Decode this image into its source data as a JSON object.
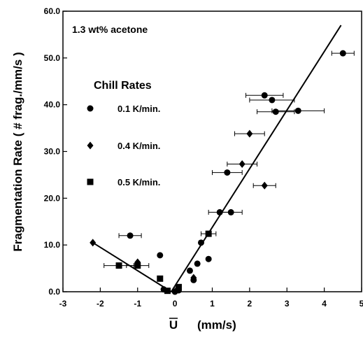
{
  "chart_data": {
    "type": "scatter",
    "annotation": "1.3 wt% acetone",
    "xlabel": "U",
    "xunit": "(mm/s)",
    "ylabel": "Fragmentation Rate ( # frag./mm/s )",
    "xlim": [
      -3,
      5
    ],
    "ylim": [
      0,
      60
    ],
    "x_ticks": [
      -3,
      -2,
      -1,
      0,
      1,
      2,
      3,
      4,
      5
    ],
    "x_tick_labels": [
      "-3",
      "-2",
      "-1",
      "0",
      "1",
      "2",
      "3",
      "4",
      "5"
    ],
    "y_ticks": [
      0,
      10,
      20,
      30,
      40,
      50,
      60
    ],
    "y_tick_labels": [
      "0.0",
      "10.0",
      "20.0",
      "30.0",
      "40.0",
      "50.0",
      "60.0"
    ],
    "grid": false,
    "legend": {
      "title": "Chill Rates",
      "placement": "upper-left",
      "entries": [
        {
          "label": "0.1 K/min.",
          "marker": "circle"
        },
        {
          "label": "0.4 K/min.",
          "marker": "diamond"
        },
        {
          "label": "0.5 K/min.",
          "marker": "square"
        }
      ]
    },
    "series": [
      {
        "name": "0.1 K/min.",
        "marker": "circle",
        "points": [
          {
            "x": -1.2,
            "y": 12.0,
            "xerr": 0.3
          },
          {
            "x": -0.4,
            "y": 7.8
          },
          {
            "x": -0.3,
            "y": 0.5
          },
          {
            "x": 0.0,
            "y": 0.0
          },
          {
            "x": 0.1,
            "y": 0.3
          },
          {
            "x": 0.4,
            "y": 4.5
          },
          {
            "x": 0.5,
            "y": 2.5
          },
          {
            "x": 0.6,
            "y": 6.0
          },
          {
            "x": 0.7,
            "y": 10.5
          },
          {
            "x": 0.9,
            "y": 7.0
          },
          {
            "x": 1.2,
            "y": 17.0,
            "xerr": 0.3
          },
          {
            "x": 1.5,
            "y": 17.0,
            "xerr": 0.3
          },
          {
            "x": 1.4,
            "y": 25.5,
            "xerr": 0.4
          },
          {
            "x": 2.4,
            "y": 42.0,
            "xerr": 0.5
          },
          {
            "x": 2.6,
            "y": 41.0,
            "xerr": 0.6
          },
          {
            "x": 2.7,
            "y": 38.5,
            "xerr": 0.5
          },
          {
            "x": 3.3,
            "y": 38.7,
            "xerr": 0.7
          },
          {
            "x": 4.5,
            "y": 51.0,
            "xerr": 0.3
          }
        ]
      },
      {
        "name": "0.4 K/min.",
        "marker": "diamond",
        "points": [
          {
            "x": -2.2,
            "y": 10.5
          },
          {
            "x": -1.0,
            "y": 6.3
          },
          {
            "x": 0.5,
            "y": 3.0
          },
          {
            "x": 1.8,
            "y": 27.3,
            "xerr": 0.4
          },
          {
            "x": 2.0,
            "y": 33.8,
            "xerr": 0.4
          },
          {
            "x": 2.4,
            "y": 22.7,
            "xerr": 0.3
          }
        ]
      },
      {
        "name": "0.5 K/min.",
        "marker": "square",
        "points": [
          {
            "x": -1.5,
            "y": 5.6,
            "xerr": 0.4
          },
          {
            "x": -1.0,
            "y": 5.6,
            "xerr": 0.3
          },
          {
            "x": -0.4,
            "y": 2.8
          },
          {
            "x": -0.2,
            "y": 0.2
          },
          {
            "x": 0.1,
            "y": 1.0
          },
          {
            "x": 0.9,
            "y": 12.4,
            "xerr": 0.2
          }
        ]
      }
    ],
    "fit_lines": [
      {
        "points": [
          [
            -2.2,
            10.5
          ],
          [
            -0.1,
            0.0
          ]
        ]
      },
      {
        "points": [
          [
            -0.1,
            0.0
          ],
          [
            4.45,
            57.0
          ]
        ]
      }
    ]
  }
}
